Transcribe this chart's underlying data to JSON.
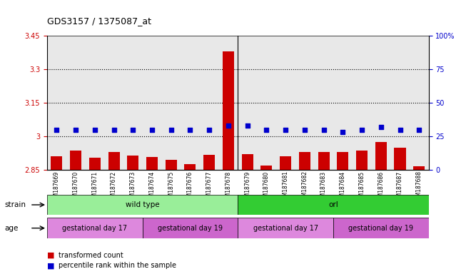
{
  "title": "GDS3157 / 1375087_at",
  "samples": [
    "GSM187669",
    "GSM187670",
    "GSM187671",
    "GSM187672",
    "GSM187673",
    "GSM187674",
    "GSM187675",
    "GSM187676",
    "GSM187677",
    "GSM187678",
    "GSM187679",
    "GSM187680",
    "GSM187681",
    "GSM187682",
    "GSM187683",
    "GSM187684",
    "GSM187685",
    "GSM187686",
    "GSM187687",
    "GSM187688"
  ],
  "transformed_count": [
    2.91,
    2.935,
    2.905,
    2.93,
    2.915,
    2.908,
    2.895,
    2.875,
    2.918,
    3.38,
    2.92,
    2.87,
    2.91,
    2.93,
    2.93,
    2.93,
    2.935,
    2.975,
    2.95,
    2.865
  ],
  "percentile_rank": [
    30,
    30,
    30,
    30,
    30,
    30,
    30,
    30,
    30,
    33,
    33,
    30,
    30,
    30,
    30,
    28,
    30,
    32,
    30,
    30
  ],
  "bar_color": "#cc0000",
  "dot_color": "#0000cc",
  "ymin": 2.85,
  "ymax": 3.45,
  "yticks": [
    2.85,
    3.0,
    3.15,
    3.3,
    3.45
  ],
  "ytick_labels": [
    "2.85",
    "3",
    "3.15",
    "3.3",
    "3.45"
  ],
  "y2min": 0,
  "y2max": 100,
  "y2ticks": [
    0,
    25,
    50,
    75,
    100
  ],
  "y2tick_labels": [
    "0",
    "25",
    "50",
    "75",
    "100%"
  ],
  "dotted_lines": [
    3.0,
    3.15,
    3.3
  ],
  "strain_groups": [
    {
      "label": "wild type",
      "start": 0,
      "end": 9,
      "color": "#99ee99"
    },
    {
      "label": "orl",
      "start": 10,
      "end": 19,
      "color": "#33cc33"
    }
  ],
  "age_groups": [
    {
      "label": "gestational day 17",
      "start": 0,
      "end": 4,
      "color": "#dd88dd"
    },
    {
      "label": "gestational day 19",
      "start": 5,
      "end": 9,
      "color": "#cc66cc"
    },
    {
      "label": "gestational day 17",
      "start": 10,
      "end": 14,
      "color": "#dd88dd"
    },
    {
      "label": "gestational day 19",
      "start": 15,
      "end": 19,
      "color": "#cc66cc"
    }
  ],
  "legend_items": [
    {
      "label": "transformed count",
      "color": "#cc0000"
    },
    {
      "label": "percentile rank within the sample",
      "color": "#0000cc"
    }
  ],
  "strain_label": "strain",
  "age_label": "age",
  "tick_color_left": "#cc0000",
  "tick_color_right": "#0000cc",
  "bg_color": "#e8e8e8",
  "fig_bg": "#ffffff"
}
